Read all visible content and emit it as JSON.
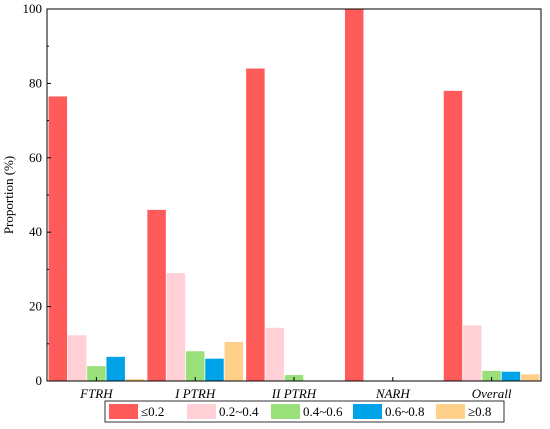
{
  "chart_data": {
    "type": "bar",
    "title": "",
    "xlabel": "",
    "ylabel": "Proportion (%)",
    "ylim": [
      0,
      100
    ],
    "yticks": [
      0,
      20,
      40,
      60,
      80,
      100
    ],
    "grid": false,
    "legend_position": "bottom",
    "categories": [
      "FTRH",
      "I PTRH",
      "II PTRH",
      "NARH",
      "Overall"
    ],
    "series": [
      {
        "name": "≤0.2",
        "color": "#FF5B5B",
        "values": [
          76.5,
          46.0,
          84.0,
          100.0,
          78.0
        ]
      },
      {
        "name": "0.2~0.4",
        "color": "#FFD1D6",
        "values": [
          12.3,
          29.0,
          14.3,
          0,
          15.0
        ]
      },
      {
        "name": "0.4~0.6",
        "color": "#99E07A",
        "values": [
          4.0,
          8.0,
          1.6,
          0,
          2.7
        ]
      },
      {
        "name": "0.6~0.8",
        "color": "#00A2E8",
        "values": [
          6.5,
          6.0,
          0,
          0,
          2.5
        ]
      },
      {
        "name": "≥0.8",
        "color": "#FFD08A",
        "values": [
          0.5,
          10.5,
          0,
          0,
          1.8
        ]
      }
    ]
  }
}
